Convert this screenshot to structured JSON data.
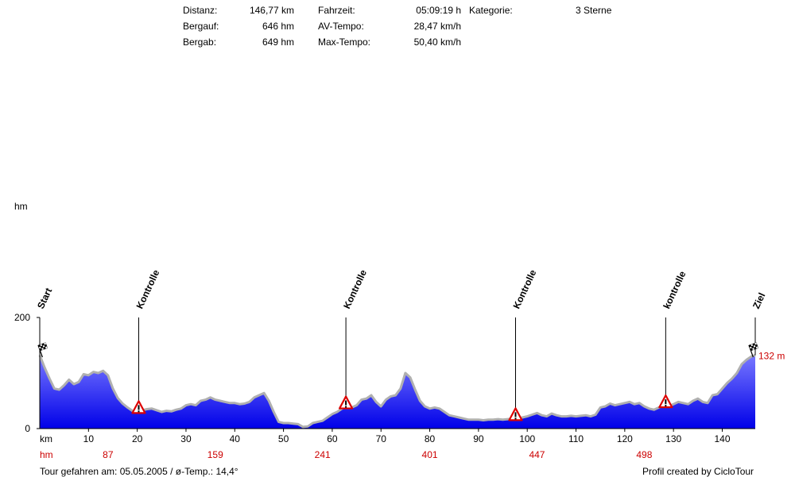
{
  "stats": {
    "col1": [
      {
        "label": "Distanz:",
        "value": "146,77 km"
      },
      {
        "label": "Bergauf:",
        "value": "646 hm"
      },
      {
        "label": "Bergab:",
        "value": "649 hm"
      }
    ],
    "col2": [
      {
        "label": "Fahrzeit:",
        "value": "05:09:19 h"
      },
      {
        "label": "AV-Tempo:",
        "value": "28,47 km/h"
      },
      {
        "label": "Max-Tempo:",
        "value": "50,40 km/h"
      }
    ],
    "col3": [
      {
        "label": "Kategorie:",
        "value": "3 Sterne"
      }
    ]
  },
  "footer": {
    "left": "Tour gefahren am: 05.05.2005  /  ø-Temp.: 14,4°",
    "right": "Profil created by CicloTour"
  },
  "colors": {
    "fill_top": "#7878ff",
    "fill_bottom": "#0000e8",
    "outline": "#b0b0b0",
    "accent_red": "#cc0000"
  },
  "chart_data": {
    "type": "area",
    "ylabel": "hm",
    "xlabel": "km",
    "xlim": [
      0,
      146.77
    ],
    "ylim": [
      0,
      200
    ],
    "yticks": [
      0,
      200
    ],
    "xticks": [
      0,
      10,
      20,
      30,
      40,
      50,
      60,
      70,
      80,
      90,
      100,
      110,
      120,
      130,
      140
    ],
    "end_elevation_label": "132 m",
    "markers": [
      {
        "label": "Start",
        "km": 0,
        "type": "start"
      },
      {
        "label": "Kontrolle",
        "km": 20.3,
        "type": "control"
      },
      {
        "label": "Kontrolle",
        "km": 62.8,
        "type": "control"
      },
      {
        "label": "Kontrolle",
        "km": 97.6,
        "type": "control"
      },
      {
        "label": "kontrolle",
        "km": 128.4,
        "type": "control"
      },
      {
        "label": "Ziel",
        "km": 146.77,
        "type": "finish"
      }
    ],
    "hm_row": {
      "label": "hm",
      "items": [
        {
          "km": 14,
          "value": "87"
        },
        {
          "km": 36,
          "value": "159"
        },
        {
          "km": 58,
          "value": "241"
        },
        {
          "km": 80,
          "value": "401"
        },
        {
          "km": 102,
          "value": "447"
        },
        {
          "km": 124,
          "value": "498"
        }
      ]
    },
    "profile": [
      [
        0,
        132
      ],
      [
        1,
        110
      ],
      [
        2,
        90
      ],
      [
        3,
        72
      ],
      [
        4,
        70
      ],
      [
        5,
        78
      ],
      [
        6,
        88
      ],
      [
        7,
        80
      ],
      [
        8,
        84
      ],
      [
        9,
        98
      ],
      [
        10,
        96
      ],
      [
        11,
        102
      ],
      [
        12,
        100
      ],
      [
        13,
        104
      ],
      [
        14,
        96
      ],
      [
        15,
        72
      ],
      [
        16,
        55
      ],
      [
        17,
        45
      ],
      [
        18,
        38
      ],
      [
        19,
        32
      ],
      [
        20,
        30
      ],
      [
        21,
        33
      ],
      [
        22,
        35
      ],
      [
        23,
        36
      ],
      [
        24,
        33
      ],
      [
        25,
        30
      ],
      [
        26,
        32
      ],
      [
        27,
        31
      ],
      [
        28,
        34
      ],
      [
        29,
        36
      ],
      [
        30,
        42
      ],
      [
        31,
        44
      ],
      [
        32,
        42
      ],
      [
        33,
        50
      ],
      [
        34,
        52
      ],
      [
        35,
        56
      ],
      [
        36,
        52
      ],
      [
        37,
        50
      ],
      [
        38,
        48
      ],
      [
        39,
        46
      ],
      [
        40,
        46
      ],
      [
        41,
        44
      ],
      [
        42,
        45
      ],
      [
        43,
        48
      ],
      [
        44,
        56
      ],
      [
        45,
        60
      ],
      [
        46,
        64
      ],
      [
        47,
        50
      ],
      [
        48,
        30
      ],
      [
        49,
        12
      ],
      [
        50,
        10
      ],
      [
        51,
        10
      ],
      [
        52,
        9
      ],
      [
        53,
        8
      ],
      [
        54,
        3
      ],
      [
        55,
        4
      ],
      [
        56,
        10
      ],
      [
        57,
        12
      ],
      [
        58,
        14
      ],
      [
        59,
        20
      ],
      [
        60,
        26
      ],
      [
        61,
        30
      ],
      [
        62,
        36
      ],
      [
        63,
        40
      ],
      [
        64,
        38
      ],
      [
        65,
        42
      ],
      [
        66,
        52
      ],
      [
        67,
        54
      ],
      [
        68,
        60
      ],
      [
        69,
        48
      ],
      [
        70,
        40
      ],
      [
        71,
        52
      ],
      [
        72,
        58
      ],
      [
        73,
        60
      ],
      [
        74,
        72
      ],
      [
        75,
        100
      ],
      [
        76,
        92
      ],
      [
        77,
        70
      ],
      [
        78,
        50
      ],
      [
        79,
        40
      ],
      [
        80,
        36
      ],
      [
        81,
        38
      ],
      [
        82,
        36
      ],
      [
        83,
        30
      ],
      [
        84,
        24
      ],
      [
        85,
        22
      ],
      [
        86,
        20
      ],
      [
        87,
        18
      ],
      [
        88,
        16
      ],
      [
        89,
        16
      ],
      [
        90,
        16
      ],
      [
        91,
        15
      ],
      [
        92,
        16
      ],
      [
        93,
        16
      ],
      [
        94,
        17
      ],
      [
        95,
        16
      ],
      [
        96,
        17
      ],
      [
        97,
        18
      ],
      [
        98,
        18
      ],
      [
        99,
        20
      ],
      [
        100,
        22
      ],
      [
        101,
        25
      ],
      [
        102,
        28
      ],
      [
        103,
        24
      ],
      [
        104,
        22
      ],
      [
        105,
        27
      ],
      [
        106,
        24
      ],
      [
        107,
        22
      ],
      [
        108,
        22
      ],
      [
        109,
        23
      ],
      [
        110,
        22
      ],
      [
        111,
        23
      ],
      [
        112,
        24
      ],
      [
        113,
        22
      ],
      [
        114,
        25
      ],
      [
        115,
        38
      ],
      [
        116,
        40
      ],
      [
        117,
        45
      ],
      [
        118,
        42
      ],
      [
        119,
        44
      ],
      [
        120,
        46
      ],
      [
        121,
        48
      ],
      [
        122,
        44
      ],
      [
        123,
        46
      ],
      [
        124,
        40
      ],
      [
        125,
        36
      ],
      [
        126,
        34
      ],
      [
        127,
        38
      ],
      [
        128,
        42
      ],
      [
        129,
        40
      ],
      [
        130,
        44
      ],
      [
        131,
        48
      ],
      [
        132,
        46
      ],
      [
        133,
        44
      ],
      [
        134,
        50
      ],
      [
        135,
        54
      ],
      [
        136,
        48
      ],
      [
        137,
        46
      ],
      [
        138,
        60
      ],
      [
        139,
        62
      ],
      [
        140,
        72
      ],
      [
        141,
        82
      ],
      [
        142,
        90
      ],
      [
        143,
        100
      ],
      [
        144,
        116
      ],
      [
        145,
        124
      ],
      [
        146,
        130
      ],
      [
        146.77,
        132
      ]
    ]
  }
}
